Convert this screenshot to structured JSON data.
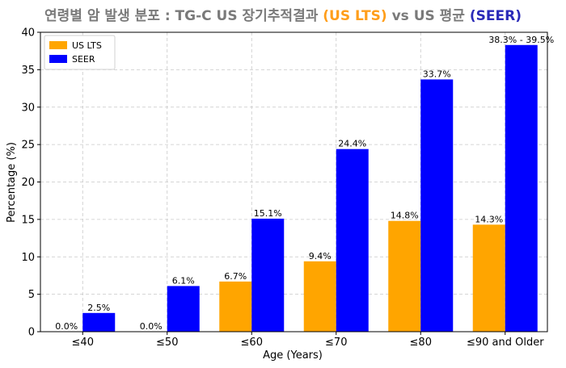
{
  "chart_data": {
    "type": "bar",
    "title_parts": [
      {
        "text": "연령별 암 발생 분포 : TG-C US 장기추적결과 ",
        "color": "#7a7a7a"
      },
      {
        "text": "(US LTS)",
        "color": "#ff9e1b"
      },
      {
        "text": " vs US 평균 ",
        "color": "#7a7a7a"
      },
      {
        "text": "(SEER)",
        "color": "#2a2ab8"
      }
    ],
    "xlabel": "Age (Years)",
    "ylabel": "Percentage (%)",
    "ylim": [
      0,
      40
    ],
    "yticks": [
      0,
      5,
      10,
      15,
      20,
      25,
      30,
      35,
      40
    ],
    "grid": true,
    "legend_position": "top-left",
    "categories": [
      "≤40",
      "≤50",
      "≤60",
      "≤70",
      "≤80",
      "≤90 and Older"
    ],
    "series": [
      {
        "name": "US LTS",
        "color": "#ffa500",
        "values": [
          0.0,
          0.0,
          6.7,
          9.4,
          14.8,
          14.3
        ],
        "labels": [
          "0.0%",
          "0.0%",
          "6.7%",
          "9.4%",
          "14.8%",
          "14.3%"
        ]
      },
      {
        "name": "SEER",
        "color": "#0000ff",
        "values": [
          2.5,
          6.1,
          15.1,
          24.4,
          33.7,
          38.3
        ],
        "labels": [
          "2.5%",
          "6.1%",
          "15.1%",
          "24.4%",
          "33.7%",
          "38.3% - 39.5%"
        ]
      }
    ]
  }
}
